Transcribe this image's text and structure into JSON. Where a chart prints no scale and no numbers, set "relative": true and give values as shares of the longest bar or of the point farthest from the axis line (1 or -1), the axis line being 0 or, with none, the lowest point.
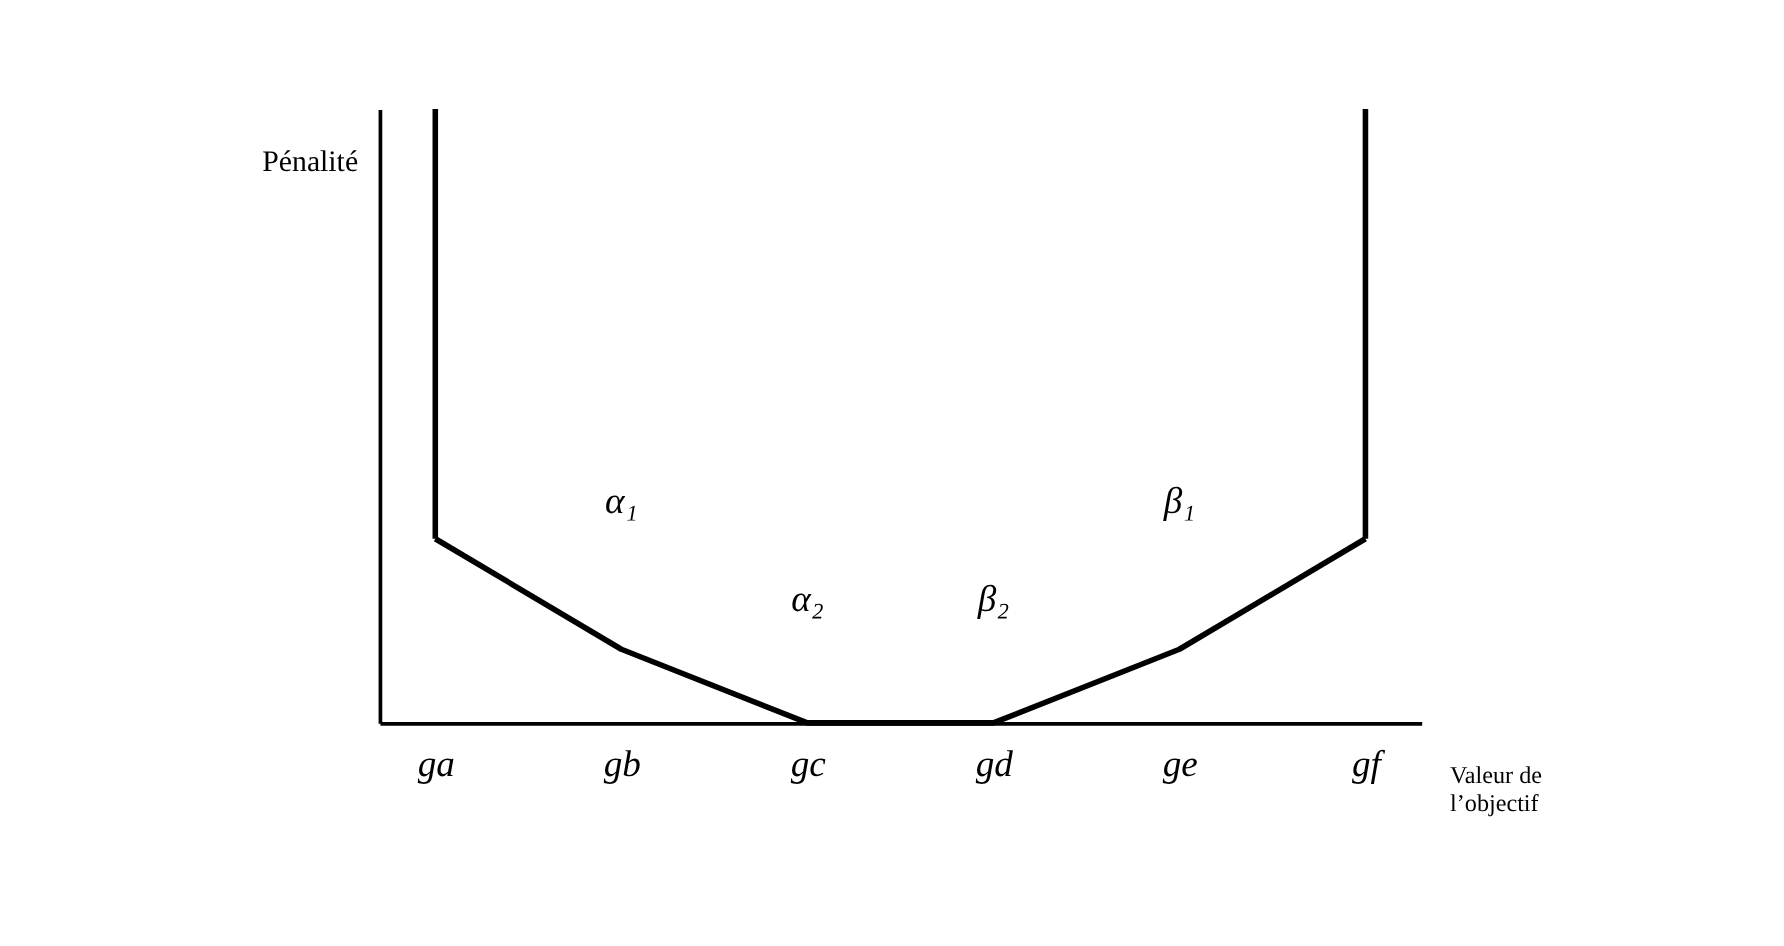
{
  "chart_data": {
    "type": "line",
    "relative": true,
    "xlabel": "Valeur de l’objectif",
    "ylabel": "Pénalité",
    "categories": [
      "ga",
      "gb",
      "gc",
      "gd",
      "ge",
      "gf"
    ],
    "series": [
      {
        "color": "#000000",
        "values": [
          0.3,
          0.12,
          0,
          0,
          0.12,
          0.3
        ]
      },
      {
        "color": "#000000",
        "x": [
          "ga",
          "ga"
        ],
        "values": [
          0.3,
          1
        ]
      },
      {
        "color": "#000000",
        "x": [
          "gf",
          "gf"
        ],
        "values": [
          0.3,
          1
        ]
      }
    ],
    "annotations": [
      "α₁",
      "α₂",
      "β₂",
      "β₁"
    ],
    "marker": "none",
    "line_style": "solid"
  }
}
